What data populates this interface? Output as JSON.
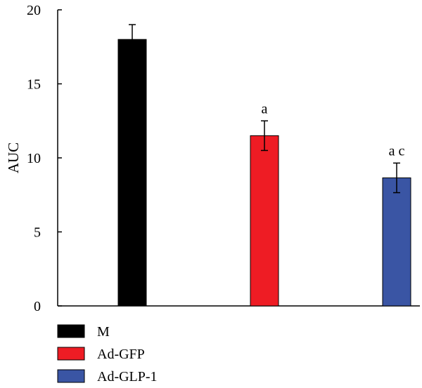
{
  "chart_data": {
    "type": "bar",
    "categories": [
      "M",
      "Ad-GFP",
      "Ad-GLP-1"
    ],
    "values": [
      18.0,
      11.5,
      8.65
    ],
    "errors": [
      1.0,
      1.0,
      1.0
    ],
    "colors": [
      "#000000",
      "#ee1c24",
      "#3a55a4"
    ],
    "annotations": [
      "",
      "a",
      "a c"
    ],
    "ylabel": "AUC",
    "ylim": [
      0,
      20
    ],
    "yticks": [
      0,
      5,
      10,
      15,
      20
    ],
    "grid": false,
    "legend": {
      "position": "bottom-left",
      "entries": [
        "M",
        "Ad-GFP",
        "Ad-GLP-1"
      ]
    }
  }
}
